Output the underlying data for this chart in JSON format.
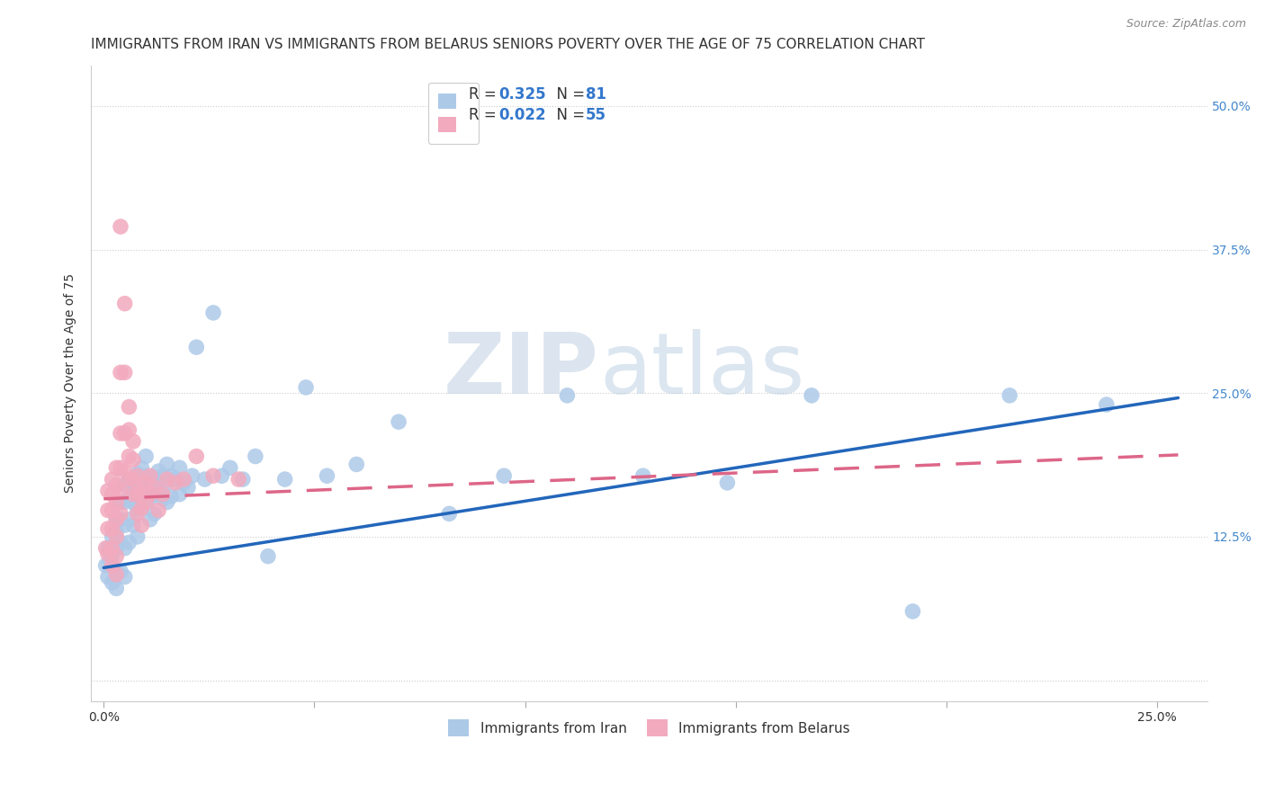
{
  "title": "IMMIGRANTS FROM IRAN VS IMMIGRANTS FROM BELARUS SENIORS POVERTY OVER THE AGE OF 75 CORRELATION CHART",
  "source": "Source: ZipAtlas.com",
  "ylabel": "Seniors Poverty Over the Age of 75",
  "xlim": [
    -0.003,
    0.262
  ],
  "ylim": [
    -0.018,
    0.535
  ],
  "iran_R": 0.325,
  "iran_N": 81,
  "belarus_R": 0.022,
  "belarus_N": 55,
  "iran_color": "#adc9e8",
  "belarus_color": "#f2aabe",
  "iran_line_color": "#2266bb",
  "belarus_line_color": "#dd6688",
  "background_color": "#ffffff",
  "grid_color": "#cccccc",
  "iran_x": [
    0.0005,
    0.001,
    0.001,
    0.0015,
    0.002,
    0.002,
    0.002,
    0.003,
    0.003,
    0.003,
    0.003,
    0.003,
    0.004,
    0.004,
    0.004,
    0.004,
    0.005,
    0.005,
    0.005,
    0.005,
    0.005,
    0.006,
    0.006,
    0.006,
    0.006,
    0.007,
    0.007,
    0.007,
    0.008,
    0.008,
    0.008,
    0.008,
    0.009,
    0.009,
    0.009,
    0.01,
    0.01,
    0.01,
    0.011,
    0.011,
    0.011,
    0.012,
    0.012,
    0.012,
    0.013,
    0.013,
    0.014,
    0.014,
    0.015,
    0.015,
    0.015,
    0.016,
    0.016,
    0.017,
    0.018,
    0.018,
    0.019,
    0.02,
    0.021,
    0.022,
    0.024,
    0.026,
    0.028,
    0.03,
    0.033,
    0.036,
    0.039,
    0.043,
    0.048,
    0.053,
    0.06,
    0.07,
    0.082,
    0.095,
    0.11,
    0.128,
    0.148,
    0.168,
    0.192,
    0.215,
    0.238
  ],
  "iran_y": [
    0.1,
    0.115,
    0.09,
    0.105,
    0.125,
    0.108,
    0.085,
    0.14,
    0.13,
    0.115,
    0.095,
    0.08,
    0.155,
    0.14,
    0.12,
    0.095,
    0.17,
    0.155,
    0.135,
    0.115,
    0.09,
    0.175,
    0.158,
    0.14,
    0.12,
    0.17,
    0.155,
    0.135,
    0.18,
    0.165,
    0.148,
    0.125,
    0.185,
    0.168,
    0.15,
    0.195,
    0.178,
    0.155,
    0.172,
    0.158,
    0.14,
    0.175,
    0.162,
    0.145,
    0.182,
    0.165,
    0.178,
    0.158,
    0.188,
    0.172,
    0.155,
    0.178,
    0.16,
    0.175,
    0.185,
    0.162,
    0.172,
    0.168,
    0.178,
    0.29,
    0.175,
    0.32,
    0.178,
    0.185,
    0.175,
    0.195,
    0.108,
    0.175,
    0.255,
    0.178,
    0.188,
    0.225,
    0.145,
    0.178,
    0.248,
    0.178,
    0.172,
    0.248,
    0.06,
    0.248,
    0.24
  ],
  "belarus_x": [
    0.0005,
    0.001,
    0.001,
    0.001,
    0.001,
    0.002,
    0.002,
    0.002,
    0.002,
    0.002,
    0.002,
    0.003,
    0.003,
    0.003,
    0.003,
    0.003,
    0.003,
    0.003,
    0.004,
    0.004,
    0.004,
    0.004,
    0.004,
    0.004,
    0.005,
    0.005,
    0.005,
    0.005,
    0.006,
    0.006,
    0.006,
    0.006,
    0.007,
    0.007,
    0.007,
    0.007,
    0.008,
    0.008,
    0.008,
    0.009,
    0.009,
    0.009,
    0.01,
    0.01,
    0.011,
    0.011,
    0.012,
    0.013,
    0.014,
    0.015,
    0.017,
    0.019,
    0.022,
    0.026,
    0.032
  ],
  "belarus_y": [
    0.115,
    0.165,
    0.148,
    0.132,
    0.11,
    0.175,
    0.162,
    0.148,
    0.132,
    0.115,
    0.1,
    0.185,
    0.17,
    0.155,
    0.14,
    0.125,
    0.108,
    0.092,
    0.395,
    0.268,
    0.215,
    0.185,
    0.165,
    0.145,
    0.328,
    0.268,
    0.215,
    0.182,
    0.238,
    0.218,
    0.195,
    0.175,
    0.208,
    0.192,
    0.175,
    0.162,
    0.178,
    0.162,
    0.145,
    0.165,
    0.15,
    0.135,
    0.172,
    0.155,
    0.178,
    0.162,
    0.168,
    0.148,
    0.162,
    0.175,
    0.172,
    0.175,
    0.195,
    0.178,
    0.175
  ],
  "iran_slope": 0.58,
  "iran_intercept": 0.098,
  "belarus_slope": 0.15,
  "belarus_intercept": 0.158,
  "watermark_zip": "ZIP",
  "watermark_atlas": "atlas",
  "title_fontsize": 11,
  "axis_label_fontsize": 10,
  "tick_fontsize": 10,
  "legend_fontsize": 12
}
